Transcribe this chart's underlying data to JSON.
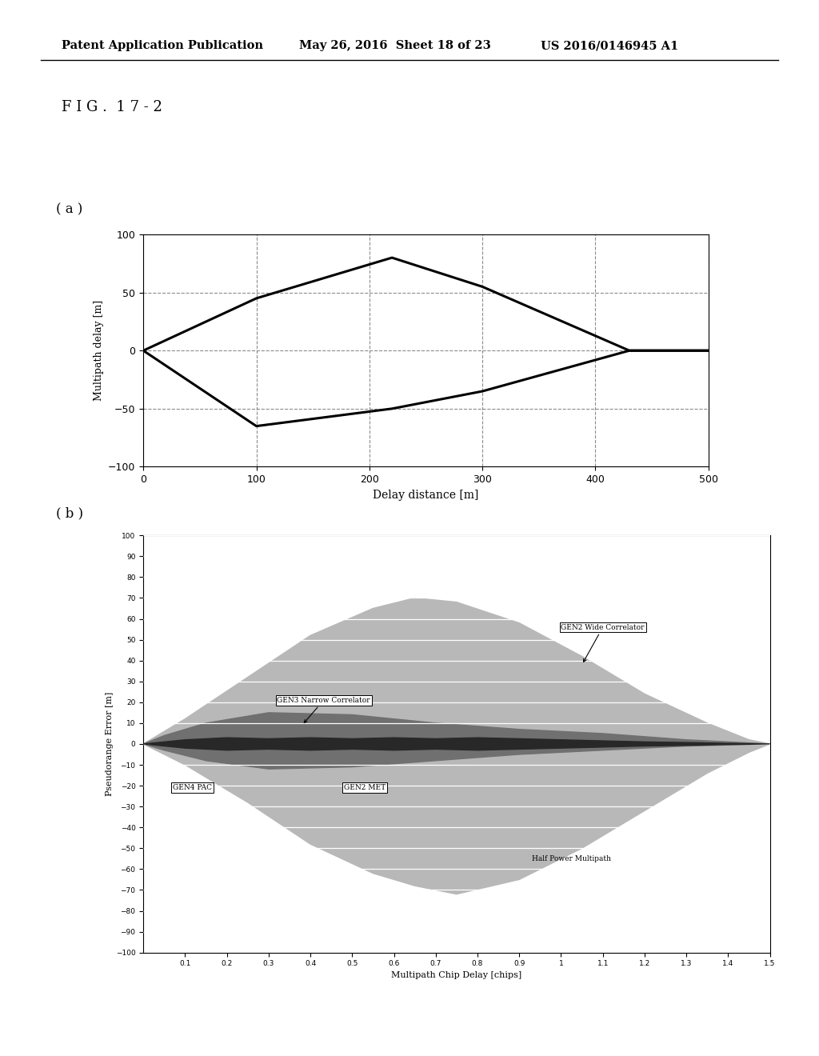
{
  "header_left": "Patent Application Publication",
  "header_mid": "May 26, 2016  Sheet 18 of 23",
  "header_right": "US 2016/0146945 A1",
  "fig_label": "F I G .  1 7 - 2",
  "panel_a_label": "( a )",
  "panel_b_label": "( b )",
  "plot_a": {
    "upper_x": [
      0,
      100,
      220,
      300,
      430,
      500
    ],
    "upper_y": [
      0,
      45,
      80,
      55,
      0,
      0
    ],
    "lower_x": [
      0,
      100,
      220,
      300,
      430,
      500
    ],
    "lower_y": [
      0,
      -65,
      -50,
      -35,
      0,
      0
    ],
    "xlim": [
      0,
      500
    ],
    "ylim": [
      -100,
      100
    ],
    "xticks": [
      0,
      100,
      200,
      300,
      400,
      500
    ],
    "yticks": [
      -100,
      -50,
      0,
      50,
      100
    ],
    "xlabel": "Delay distance [m]",
    "ylabel": "Multipath delay [m]"
  },
  "plot_b": {
    "xlabel": "Multipath Chip Delay [chips]",
    "ylabel": "Pseudorange Error [m]",
    "xlim": [
      0,
      1.5
    ],
    "ylim": [
      -100,
      100
    ],
    "xticks": [
      0.1,
      0.2,
      0.3,
      0.4,
      0.5,
      0.6,
      0.7,
      0.8,
      0.9,
      1.0,
      1.1,
      1.2,
      1.3,
      1.4,
      1.5
    ],
    "yticks": [
      -100,
      -90,
      -80,
      -70,
      -60,
      -50,
      -40,
      -30,
      -20,
      -10,
      0,
      10,
      20,
      30,
      40,
      50,
      60,
      70,
      80,
      90,
      100
    ],
    "wide_upper_x": [
      0,
      0.1,
      0.25,
      0.4,
      0.55,
      0.65,
      0.75,
      0.9,
      1.05,
      1.2,
      1.35,
      1.45,
      1.5
    ],
    "wide_upper_y": [
      0,
      12,
      32,
      52,
      65,
      70,
      68,
      58,
      42,
      24,
      10,
      2,
      0
    ],
    "wide_lower_x": [
      0,
      0.1,
      0.25,
      0.4,
      0.55,
      0.65,
      0.75,
      0.9,
      1.05,
      1.2,
      1.35,
      1.45,
      1.5
    ],
    "wide_lower_y": [
      0,
      -10,
      -28,
      -48,
      -62,
      -68,
      -72,
      -65,
      -50,
      -32,
      -14,
      -4,
      0
    ],
    "narrow_upper_x": [
      0,
      0.05,
      0.15,
      0.3,
      0.5,
      0.7,
      0.9,
      1.1,
      1.3,
      1.5
    ],
    "narrow_upper_y": [
      0,
      4,
      10,
      15,
      14,
      10,
      7,
      5,
      2,
      0
    ],
    "narrow_lower_x": [
      0,
      0.05,
      0.15,
      0.3,
      0.5,
      0.7,
      0.9,
      1.1,
      1.3,
      1.5
    ],
    "narrow_lower_y": [
      0,
      -3,
      -8,
      -12,
      -11,
      -8,
      -5,
      -3,
      -1,
      0
    ],
    "pac_x": [
      0,
      0.1,
      0.2,
      0.3,
      0.4,
      0.5,
      0.6,
      0.7,
      0.8,
      0.9,
      1.0,
      1.1,
      1.2,
      1.3,
      1.4,
      1.5
    ],
    "pac_upper_y": [
      0,
      2.0,
      3.0,
      2.5,
      3.0,
      2.5,
      3.0,
      2.5,
      3.0,
      2.5,
      2.0,
      1.5,
      1.0,
      0.7,
      0.3,
      0
    ],
    "pac_lower_y": [
      0,
      -2.0,
      -3.0,
      -2.5,
      -3.0,
      -2.5,
      -3.0,
      -2.5,
      -3.0,
      -2.5,
      -2.0,
      -1.5,
      -1.0,
      -0.7,
      -0.3,
      0
    ],
    "label_wide": "GEN2 Wide Correlator",
    "label_narrow": "GEN3 Narrow Correlator",
    "label_pac": "GEN4 PAC",
    "label_met": "GEN2 MET",
    "label_halfpower": "Half Power Multipath",
    "fill_wide_color": "#b8b8b8",
    "fill_narrow_color": "#707070",
    "fill_pac_color": "#282828"
  }
}
